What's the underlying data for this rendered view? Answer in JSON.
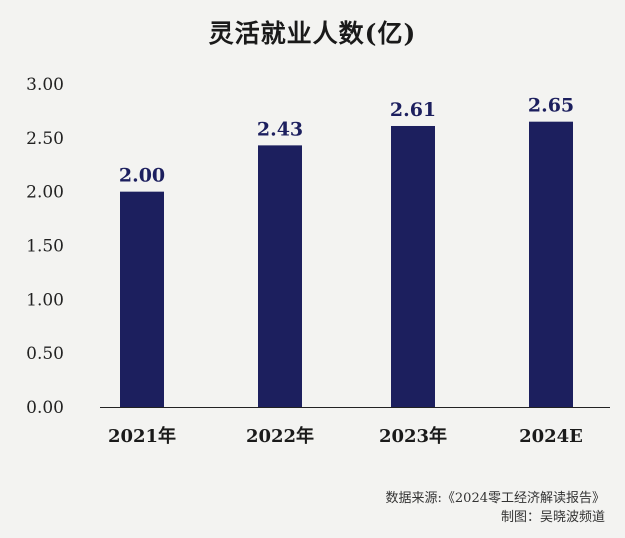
{
  "title": "灵活就业人数(亿)",
  "chart_data": {
    "type": "bar",
    "categories": [
      "2021年",
      "2022年",
      "2023年",
      "2024E"
    ],
    "values": [
      2.0,
      2.43,
      2.61,
      2.65
    ],
    "value_labels": [
      "2.00",
      "2.43",
      "2.61",
      "2.65"
    ],
    "title": "灵活就业人数(亿)",
    "xlabel": "",
    "ylabel": "",
    "ylim": [
      0,
      3.0
    ],
    "yticks": [
      0,
      0.5,
      1.0,
      1.5,
      2.0,
      2.5,
      3.0
    ],
    "ytick_labels": [
      "0.00",
      "0.50",
      "1.00",
      "1.50",
      "2.00",
      "2.50",
      "3.00"
    ],
    "grid": false,
    "bar_color": "#1c1f5e",
    "label_color": "#1c1f5e"
  },
  "source": {
    "line1": "数据来源:《2024零工经济解读报告》",
    "line2": "制图：吴晓波频道"
  }
}
